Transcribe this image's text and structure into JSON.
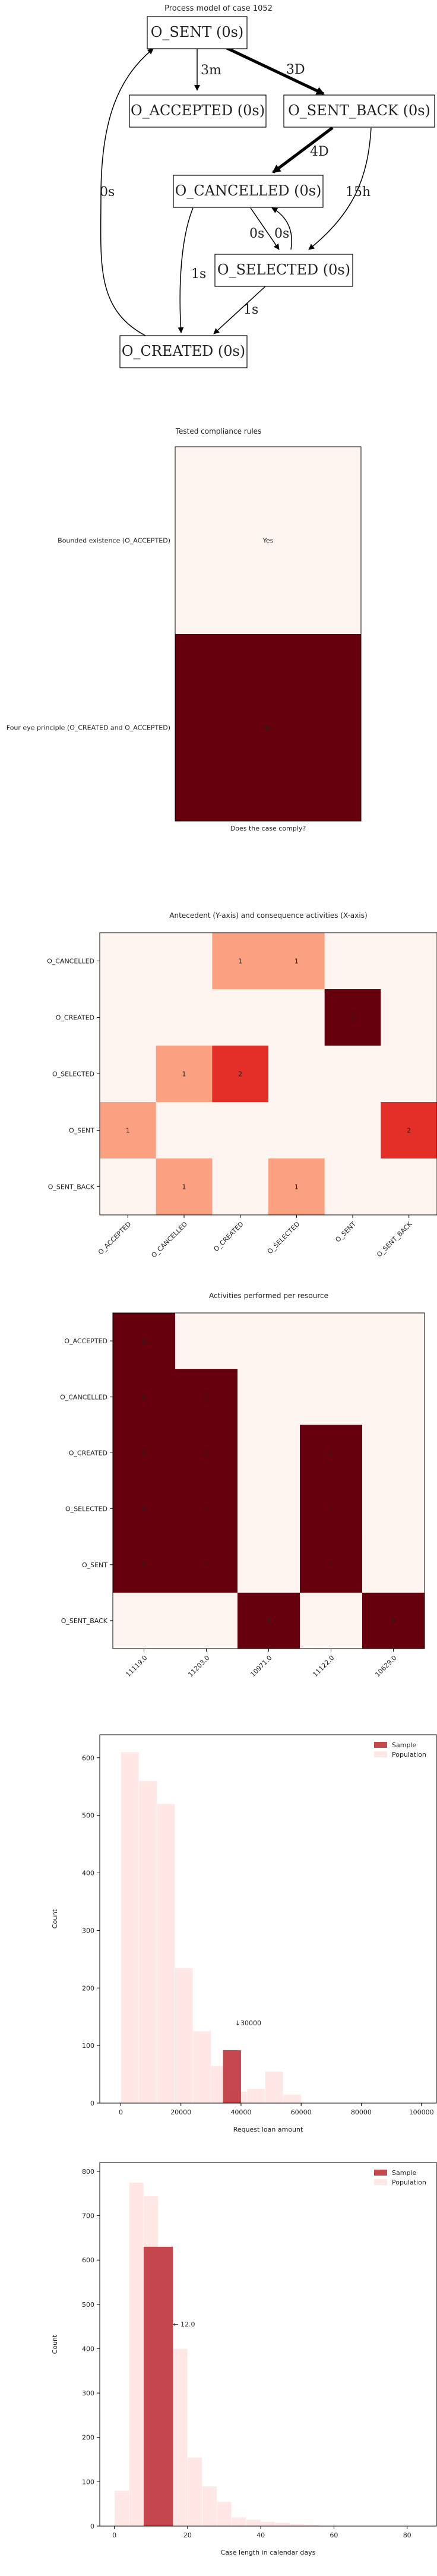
{
  "process_model": {
    "title": "Process model of case 1052",
    "nodes": {
      "sent": "O_SENT (0s)",
      "accepted": "O_ACCEPTED (0s)",
      "sent_back": "O_SENT_BACK (0s)",
      "cancelled": "O_CANCELLED (0s)",
      "selected": "O_SELECTED (0s)",
      "created": "O_CREATED (0s)"
    },
    "edges": {
      "sent_accepted": "3m",
      "sent_sent_back": "3D",
      "sent_back_cancelled": "4D",
      "sent_back_selected": "15h",
      "cancelled_selected": "0s",
      "selected_cancelled": "0s",
      "cancelled_created": "1s",
      "selected_created": "1s",
      "created_sent": "0s"
    }
  },
  "chart_data": [
    {
      "type": "heatmap",
      "title": "Tested compliance rules",
      "xlabel": "Does the case comply?",
      "rows": [
        {
          "label": "Bounded existence (O_ACCEPTED)",
          "value_label": "Yes",
          "value": 0,
          "color": "#fff5f0"
        },
        {
          "label": "Four eye principle (O_CREATED and O_ACCEPTED)",
          "value_label": "No",
          "value": 1,
          "color": "#67000d"
        }
      ]
    },
    {
      "type": "heatmap",
      "title": "Antecedent (Y-axis) and consequence activities (X-axis)",
      "rows": [
        "O_CANCELLED",
        "O_CREATED",
        "O_SELECTED",
        "O_SENT",
        "O_SENT_BACK"
      ],
      "cols": [
        "O_ACCEPTED",
        "O_CANCELLED",
        "O_CREATED",
        "O_SELECTED",
        "O_SENT",
        "O_SENT_BACK"
      ],
      "values": [
        [
          0,
          0,
          1,
          1,
          0,
          0
        ],
        [
          0,
          0,
          0,
          0,
          3,
          0
        ],
        [
          0,
          1,
          2,
          0,
          0,
          0
        ],
        [
          1,
          0,
          0,
          0,
          0,
          2
        ],
        [
          0,
          1,
          0,
          1,
          0,
          0
        ]
      ],
      "vmax": 3
    },
    {
      "type": "heatmap",
      "title": "Activities performed per resource",
      "rows": [
        "O_ACCEPTED",
        "O_CANCELLED",
        "O_CREATED",
        "O_SELECTED",
        "O_SENT",
        "O_SENT_BACK"
      ],
      "cols": [
        "11119.0",
        "11203.0",
        "10971.0",
        "11122.0",
        "10629.0"
      ],
      "values": [
        [
          1,
          0,
          0,
          0,
          0
        ],
        [
          1,
          1,
          0,
          0,
          0
        ],
        [
          1,
          1,
          0,
          1,
          0
        ],
        [
          1,
          1,
          0,
          1,
          0
        ],
        [
          1,
          1,
          0,
          1,
          0
        ],
        [
          0,
          0,
          1,
          0,
          1
        ]
      ],
      "vmax": 1
    },
    {
      "type": "bar",
      "title": "",
      "xlabel": "Request loan amount",
      "ylabel": "Count",
      "xlim": [
        -7000,
        105000
      ],
      "ylim": [
        0,
        640
      ],
      "xticks": [
        0,
        20000,
        40000,
        60000,
        80000,
        100000
      ],
      "yticks": [
        0,
        100,
        200,
        300,
        400,
        500,
        600
      ],
      "legend": [
        "Sample",
        "Population"
      ],
      "legend_position": "top-right",
      "population_bins": {
        "edges": [
          0,
          6000,
          12000,
          18000,
          24000,
          30000,
          36000,
          42000,
          48000,
          54000,
          60000
        ],
        "counts": [
          610,
          560,
          520,
          235,
          125,
          65,
          20,
          25,
          55,
          15
        ]
      },
      "sample_bin": {
        "x0": 34000,
        "x1": 40000,
        "count": 92
      },
      "annotation": "↓30000"
    },
    {
      "type": "bar",
      "title": "",
      "xlabel": "Case length in calendar days",
      "ylabel": "Count",
      "xlim": [
        -4,
        88
      ],
      "ylim": [
        0,
        820
      ],
      "xticks": [
        0,
        20,
        40,
        60,
        80
      ],
      "yticks": [
        0,
        100,
        200,
        300,
        400,
        500,
        600,
        700,
        800
      ],
      "legend": [
        "Sample",
        "Population"
      ],
      "legend_position": "top-right",
      "population_bins": {
        "edges": [
          0,
          4,
          8,
          12,
          16,
          20,
          24,
          28,
          32,
          36,
          40,
          44,
          48,
          52,
          56
        ],
        "counts": [
          80,
          775,
          745,
          630,
          400,
          155,
          90,
          55,
          20,
          15,
          10,
          8,
          5,
          3
        ]
      },
      "sample_bin": {
        "x0": 8,
        "x1": 16,
        "count": 630
      },
      "annotation": "← 12.0"
    }
  ],
  "colors": {
    "sample": "#c0343c",
    "population": "#fdd3d0",
    "heat_low": "#fff5f0",
    "heat_high": "#67000d"
  }
}
